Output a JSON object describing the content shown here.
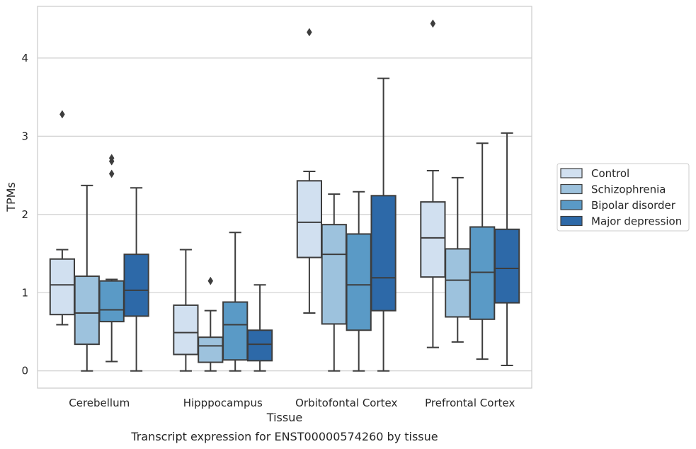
{
  "chart_data": {
    "type": "box",
    "title": "",
    "caption": "Transcript expression for ENST00000574260 by tissue",
    "xlabel": "Tissue",
    "ylabel": "TPMs",
    "ylim": [
      -0.22,
      4.66
    ],
    "yticks": [
      0,
      1,
      2,
      3,
      4
    ],
    "ytick_labels": [
      "0",
      "1",
      "2",
      "3",
      "4"
    ],
    "grid": "horizontal",
    "legend_position": "right",
    "categories": [
      "Cerebellum",
      "Hipppocampus",
      "Orbitofontal Cortex",
      "Prefrontal Cortex"
    ],
    "series": [
      {
        "name": "Control",
        "color": "#d1e0f0",
        "boxes": [
          {
            "whislo": 0.59,
            "q1": 0.72,
            "med": 1.1,
            "q3": 1.43,
            "whishi": 1.55,
            "fliers": [
              3.28
            ]
          },
          {
            "whislo": 0.0,
            "q1": 0.21,
            "med": 0.49,
            "q3": 0.84,
            "whishi": 1.55,
            "fliers": []
          },
          {
            "whislo": 0.74,
            "q1": 1.45,
            "med": 1.9,
            "q3": 2.43,
            "whishi": 2.55,
            "fliers": [
              4.33
            ]
          },
          {
            "whislo": 0.3,
            "q1": 1.2,
            "med": 1.7,
            "q3": 2.16,
            "whishi": 2.56,
            "fliers": [
              4.44
            ]
          }
        ]
      },
      {
        "name": "Schizophrenia",
        "color": "#9dc2dd",
        "boxes": [
          {
            "whislo": 0.0,
            "q1": 0.34,
            "med": 0.74,
            "q3": 1.21,
            "whishi": 2.37,
            "fliers": []
          },
          {
            "whislo": 0.0,
            "q1": 0.11,
            "med": 0.32,
            "q3": 0.43,
            "whishi": 0.77,
            "fliers": [
              1.15
            ]
          },
          {
            "whislo": 0.0,
            "q1": 0.6,
            "med": 1.49,
            "q3": 1.87,
            "whishi": 2.26,
            "fliers": []
          },
          {
            "whislo": 0.37,
            "q1": 0.69,
            "med": 1.16,
            "q3": 1.56,
            "whishi": 2.47,
            "fliers": []
          }
        ]
      },
      {
        "name": "Bipolar disorder",
        "color": "#5a9ac6",
        "boxes": [
          {
            "whislo": 0.12,
            "q1": 0.63,
            "med": 0.78,
            "q3": 1.15,
            "whishi": 1.17,
            "fliers": [
              2.52,
              2.68,
              2.72
            ]
          },
          {
            "whislo": 0.0,
            "q1": 0.14,
            "med": 0.59,
            "q3": 0.88,
            "whishi": 1.77,
            "fliers": []
          },
          {
            "whislo": 0.0,
            "q1": 0.52,
            "med": 1.1,
            "q3": 1.75,
            "whishi": 2.29,
            "fliers": []
          },
          {
            "whislo": 0.15,
            "q1": 0.66,
            "med": 1.26,
            "q3": 1.84,
            "whishi": 2.91,
            "fliers": []
          }
        ]
      },
      {
        "name": "Major depression",
        "color": "#2d69a8",
        "boxes": [
          {
            "whislo": 0.0,
            "q1": 0.7,
            "med": 1.03,
            "q3": 1.49,
            "whishi": 2.34,
            "fliers": []
          },
          {
            "whislo": 0.0,
            "q1": 0.13,
            "med": 0.34,
            "q3": 0.52,
            "whishi": 1.1,
            "fliers": []
          },
          {
            "whislo": 0.0,
            "q1": 0.77,
            "med": 1.19,
            "q3": 2.24,
            "whishi": 3.74,
            "fliers": []
          },
          {
            "whislo": 0.07,
            "q1": 0.87,
            "med": 1.31,
            "q3": 1.81,
            "whishi": 3.04,
            "fliers": []
          }
        ]
      }
    ]
  }
}
